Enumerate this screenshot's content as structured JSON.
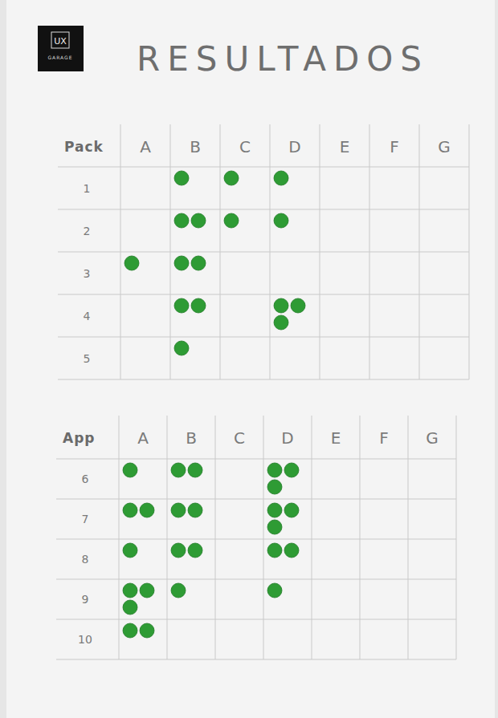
{
  "header": {
    "logo_top": "UX",
    "logo_bottom": "GARAGE",
    "title": "RESULTADOS"
  },
  "chart_data": [
    {
      "type": "dot_matrix",
      "title": "Pack",
      "color": "#2e9b34",
      "categories": [
        "A",
        "B",
        "C",
        "D",
        "E",
        "F",
        "G"
      ],
      "rows": [
        1,
        2,
        3,
        4,
        5
      ],
      "values": [
        [
          0,
          1,
          1,
          1,
          0,
          0,
          0
        ],
        [
          0,
          2,
          1,
          1,
          0,
          0,
          0
        ],
        [
          1,
          2,
          0,
          0,
          0,
          0,
          0
        ],
        [
          0,
          2,
          0,
          3,
          0,
          0,
          0
        ],
        [
          0,
          1,
          0,
          0,
          0,
          0,
          0
        ]
      ]
    },
    {
      "type": "dot_matrix",
      "title": "App",
      "color": "#2e9b34",
      "categories": [
        "A",
        "B",
        "C",
        "D",
        "E",
        "F",
        "G"
      ],
      "rows": [
        6,
        7,
        8,
        9,
        10
      ],
      "values": [
        [
          1,
          2,
          0,
          3,
          0,
          0,
          0
        ],
        [
          2,
          2,
          0,
          3,
          0,
          0,
          0
        ],
        [
          1,
          2,
          0,
          2,
          0,
          0,
          0
        ],
        [
          3,
          1,
          0,
          1,
          0,
          0,
          0
        ],
        [
          2,
          0,
          0,
          0,
          0,
          0,
          0
        ]
      ]
    }
  ]
}
